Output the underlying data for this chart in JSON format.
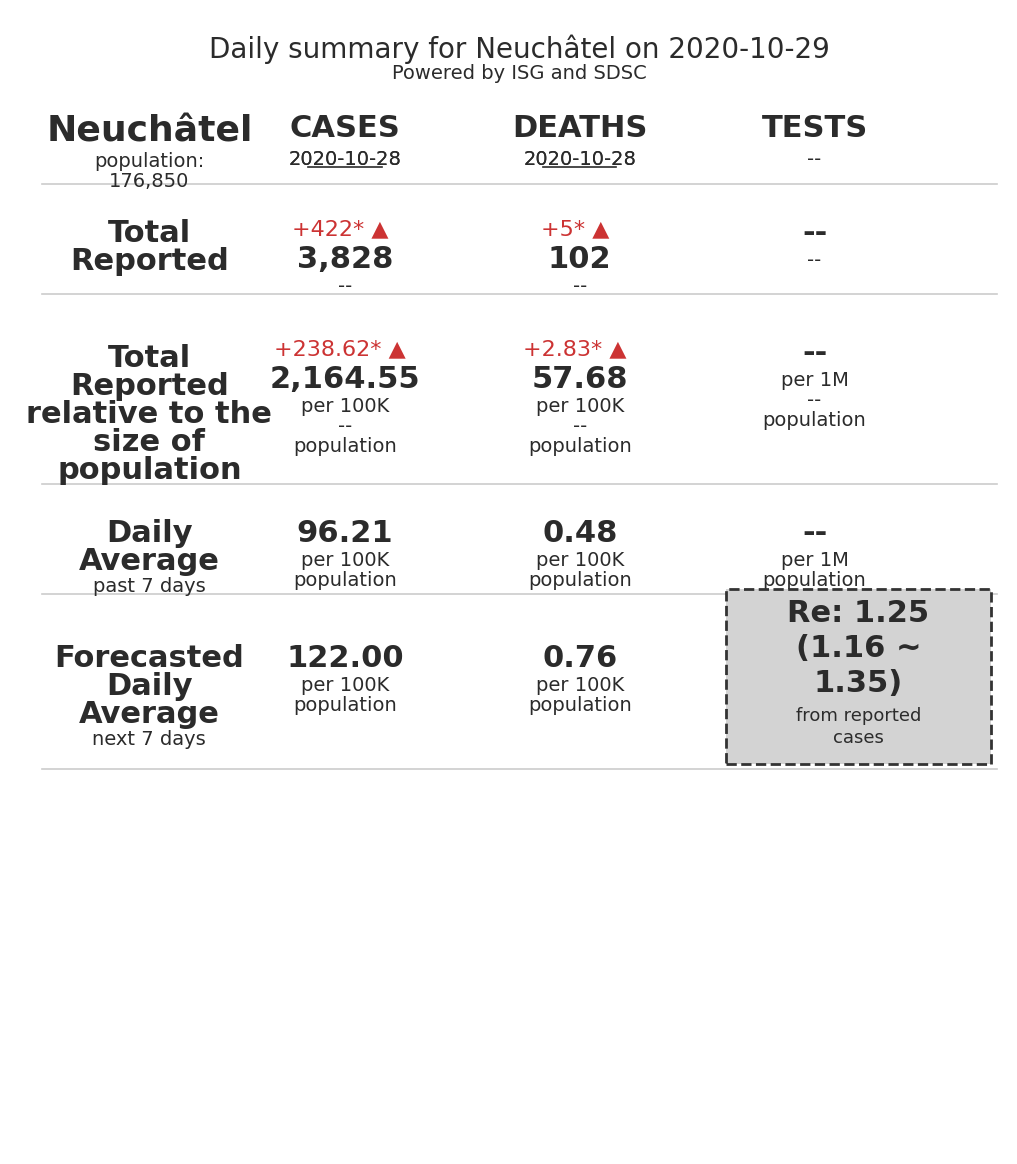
{
  "title": "Daily summary for Neuchâtel on 2020-10-29",
  "subtitle": "Powered by ISG and SDSC",
  "region_name": "Neuchâtel",
  "population_label": "population:",
  "population": "176,850",
  "col_headers": [
    "CASES",
    "DEATHS",
    "TESTS"
  ],
  "col_dates": [
    "2020-10-28",
    "2020-10-28",
    "--"
  ],
  "col_dates_underline": [
    true,
    true,
    false
  ],
  "rows": [
    {
      "label_lines": [
        "Total",
        "Reported"
      ],
      "label_bold": true,
      "values": [
        {
          "delta": "+422*",
          "arrow": "▲",
          "main": "3,828",
          "sub1": "",
          "sub2": "--",
          "sub3": ""
        },
        {
          "delta": "+5*",
          "arrow": "▲",
          "main": "102",
          "sub1": "",
          "sub2": "--",
          "sub3": ""
        },
        {
          "delta": "",
          "arrow": "",
          "main": "--",
          "sub1": "",
          "sub2": "--",
          "sub3": ""
        }
      ]
    },
    {
      "label_lines": [
        "Total",
        "Reported",
        "relative to the",
        "size of",
        "population"
      ],
      "label_bold": true,
      "values": [
        {
          "delta": "+238.62*",
          "arrow": "▲",
          "main": "2,164.55",
          "sub1": "per 100K",
          "sub2": "--",
          "sub3": "population"
        },
        {
          "delta": "+2.83*",
          "arrow": "▲",
          "main": "57.68",
          "sub1": "per 100K",
          "sub2": "--",
          "sub3": "population"
        },
        {
          "delta": "",
          "arrow": "",
          "main": "--",
          "sub1": "per 1M",
          "sub2": "--",
          "sub3": "population"
        }
      ]
    },
    {
      "label_lines": [
        "Daily",
        "Average"
      ],
      "label_bold": true,
      "label_sub": "past 7 days",
      "values": [
        {
          "delta": "",
          "arrow": "",
          "main": "96.21",
          "sub1": "per 100K",
          "sub2": "",
          "sub3": "population"
        },
        {
          "delta": "",
          "arrow": "",
          "main": "0.48",
          "sub1": "per 100K",
          "sub2": "",
          "sub3": "population"
        },
        {
          "delta": "",
          "arrow": "",
          "main": "--",
          "sub1": "per 1M",
          "sub2": "",
          "sub3": "population"
        }
      ]
    },
    {
      "label_lines": [
        "Forecasted",
        "Daily",
        "Average"
      ],
      "label_bold": true,
      "label_sub": "next 7 days",
      "values": [
        {
          "delta": "",
          "arrow": "",
          "main": "122.00",
          "sub1": "per 100K",
          "sub2": "",
          "sub3": "population"
        },
        {
          "delta": "",
          "arrow": "",
          "main": "0.76",
          "sub1": "per 100K",
          "sub2": "",
          "sub3": "population"
        },
        {
          "delta": "",
          "arrow": "",
          "main": "",
          "sub1": "",
          "sub2": "",
          "sub3": ""
        }
      ],
      "re_box": {
        "text_line1": "Re: 1.25",
        "text_line2": "(1.16 ~",
        "text_line3": "1.35)",
        "text_line4": "from reported",
        "text_line5": "cases",
        "bg_color": "#d3d3d3",
        "border_color": "#333333"
      }
    }
  ],
  "text_color_dark": "#2b2b2b",
  "text_color_red": "#cc3333",
  "bg_color": "#ffffff",
  "separator_color": "#cccccc",
  "title_fontsize": 20,
  "subtitle_fontsize": 14,
  "header_fontsize": 22,
  "region_fontsize": 26,
  "row_label_fontsize": 22,
  "row_sub_fontsize": 14,
  "value_main_fontsize": 22,
  "value_delta_fontsize": 16,
  "value_sub_fontsize": 14
}
